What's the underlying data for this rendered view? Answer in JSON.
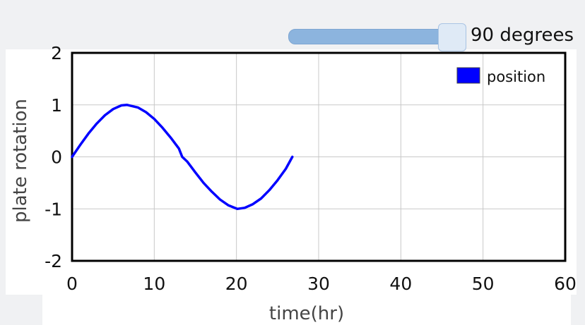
{
  "slider": {
    "value_label": "90 degrees",
    "value": 90
  },
  "chart_data": {
    "type": "line",
    "title": "",
    "xlabel": "time(hr)",
    "ylabel": "plate rotation",
    "xlim": [
      0,
      60
    ],
    "ylim": [
      -2,
      2
    ],
    "xticks": [
      "0",
      "10",
      "20",
      "30",
      "40",
      "50",
      "60"
    ],
    "yticks": [
      "2",
      "1",
      "0",
      "-1",
      "-2"
    ],
    "grid": true,
    "legend": "top-right",
    "series": [
      {
        "name": "position",
        "color": "#0000ff",
        "x": [
          0,
          1,
          2,
          3,
          4,
          5,
          6,
          6.7,
          8,
          9,
          10,
          11,
          12,
          13,
          13.4,
          14,
          15,
          16,
          17,
          18,
          19,
          20.1,
          21,
          22,
          23,
          24,
          25,
          26,
          26.8
        ],
        "y": [
          0,
          0.23,
          0.45,
          0.64,
          0.8,
          0.92,
          0.99,
          1.0,
          0.95,
          0.86,
          0.73,
          0.56,
          0.37,
          0.16,
          0.0,
          -0.09,
          -0.3,
          -0.5,
          -0.67,
          -0.82,
          -0.93,
          -1.0,
          -0.98,
          -0.91,
          -0.8,
          -0.64,
          -0.45,
          -0.23,
          0.0
        ]
      }
    ]
  }
}
